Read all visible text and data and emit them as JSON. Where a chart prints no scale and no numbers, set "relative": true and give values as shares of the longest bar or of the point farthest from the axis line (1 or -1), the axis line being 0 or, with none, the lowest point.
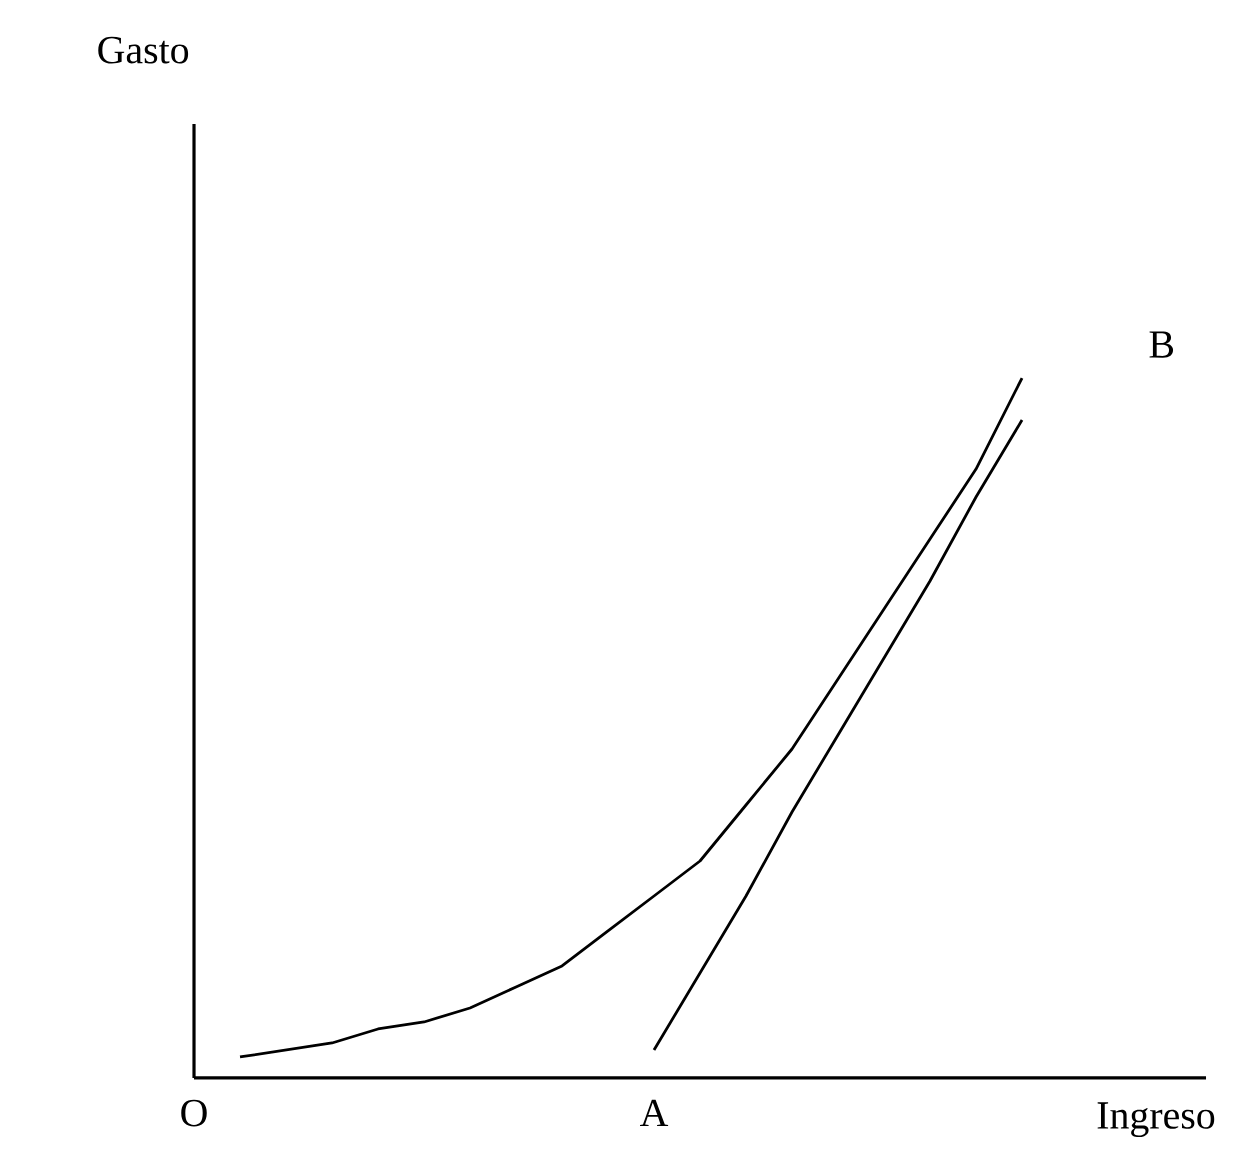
{
  "chart_data": {
    "type": "line",
    "relative": true,
    "xlabel": "Ingreso",
    "categories": [
      "O",
      null,
      null,
      null,
      null,
      null,
      null,
      null,
      null,
      null,
      "A",
      null,
      null,
      null,
      null,
      null,
      null,
      null,
      null,
      null,
      null,
      null,
      null
    ],
    "series": [
      {
        "color": "#000000",
        "values": [
          null,
          0.03,
          0.04,
          0.05,
          0.07,
          0.08,
          0.1,
          0.13,
          0.16,
          0.21,
          0.26,
          0.31,
          0.39,
          0.47,
          0.57,
          0.67,
          0.77,
          0.87,
          1,
          null,
          null,
          null,
          null
        ]
      },
      {
        "color": "#000000",
        "values": [
          null,
          null,
          null,
          null,
          null,
          null,
          null,
          null,
          null,
          null,
          0.04,
          0.15,
          0.26,
          0.38,
          0.49,
          0.6,
          0.71,
          0.83,
          0.94,
          null,
          null,
          null,
          null
        ]
      }
    ],
    "annotations": [
      "B",
      "Gasto"
    ],
    "marker": "none",
    "line_style": "solid",
    "grid": false
  }
}
